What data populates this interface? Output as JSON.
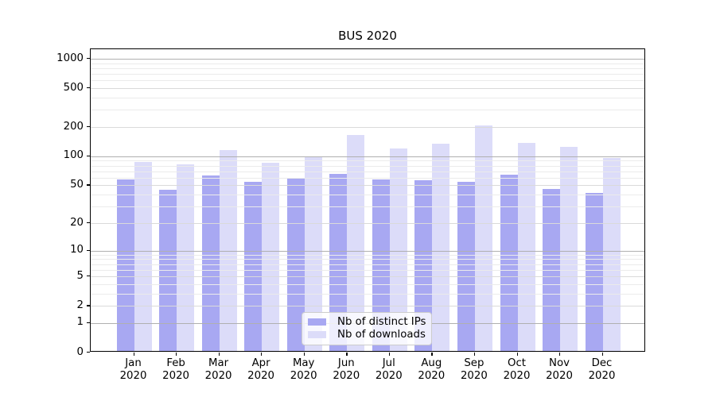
{
  "title": "BUS 2020",
  "chart_data": {
    "type": "bar",
    "title": "BUS 2020",
    "categories": [
      "Jan 2020",
      "Feb 2020",
      "Mar 2020",
      "Apr 2020",
      "May 2020",
      "Jun 2020",
      "Jul 2020",
      "Aug 2020",
      "Sep 2020",
      "Oct 2020",
      "Nov 2020",
      "Dec 2020"
    ],
    "series": [
      {
        "name": "Nb of distinct IPs",
        "color": "#a8a8f2",
        "values": [
          55,
          43,
          61,
          52,
          57,
          63,
          56,
          54,
          52,
          62,
          44,
          40
        ]
      },
      {
        "name": "Nb of downloads",
        "color": "#dcdcf9",
        "values": [
          84,
          80,
          112,
          83,
          97,
          160,
          116,
          131,
          199,
          133,
          120,
          92
        ]
      }
    ],
    "xlabel": "",
    "ylabel": "",
    "yscale": "symlog (position proportional to ln(1+v))",
    "ylim": [
      0,
      1252
    ],
    "yticks_labeled": [
      0,
      1,
      2,
      5,
      10,
      20,
      50,
      100,
      200,
      500,
      1000
    ],
    "ygrid_major": [
      1,
      10,
      100,
      1000
    ],
    "ygrid_minor_labeled": [
      2,
      5,
      20,
      50,
      200,
      500
    ],
    "ygrid_minor": [
      3,
      4,
      6,
      7,
      8,
      9,
      30,
      40,
      60,
      70,
      80,
      90,
      300,
      400,
      600,
      700,
      800,
      900
    ],
    "grid": "horizontal, drawn above bars",
    "legend_position": "inside axes, lower center",
    "colors": {
      "grid_major": "#b0b0b0",
      "grid_minor_labeled": "#dadada",
      "grid_minor": "#ebebeb",
      "axis": "#000000",
      "background": "#ffffff"
    }
  }
}
